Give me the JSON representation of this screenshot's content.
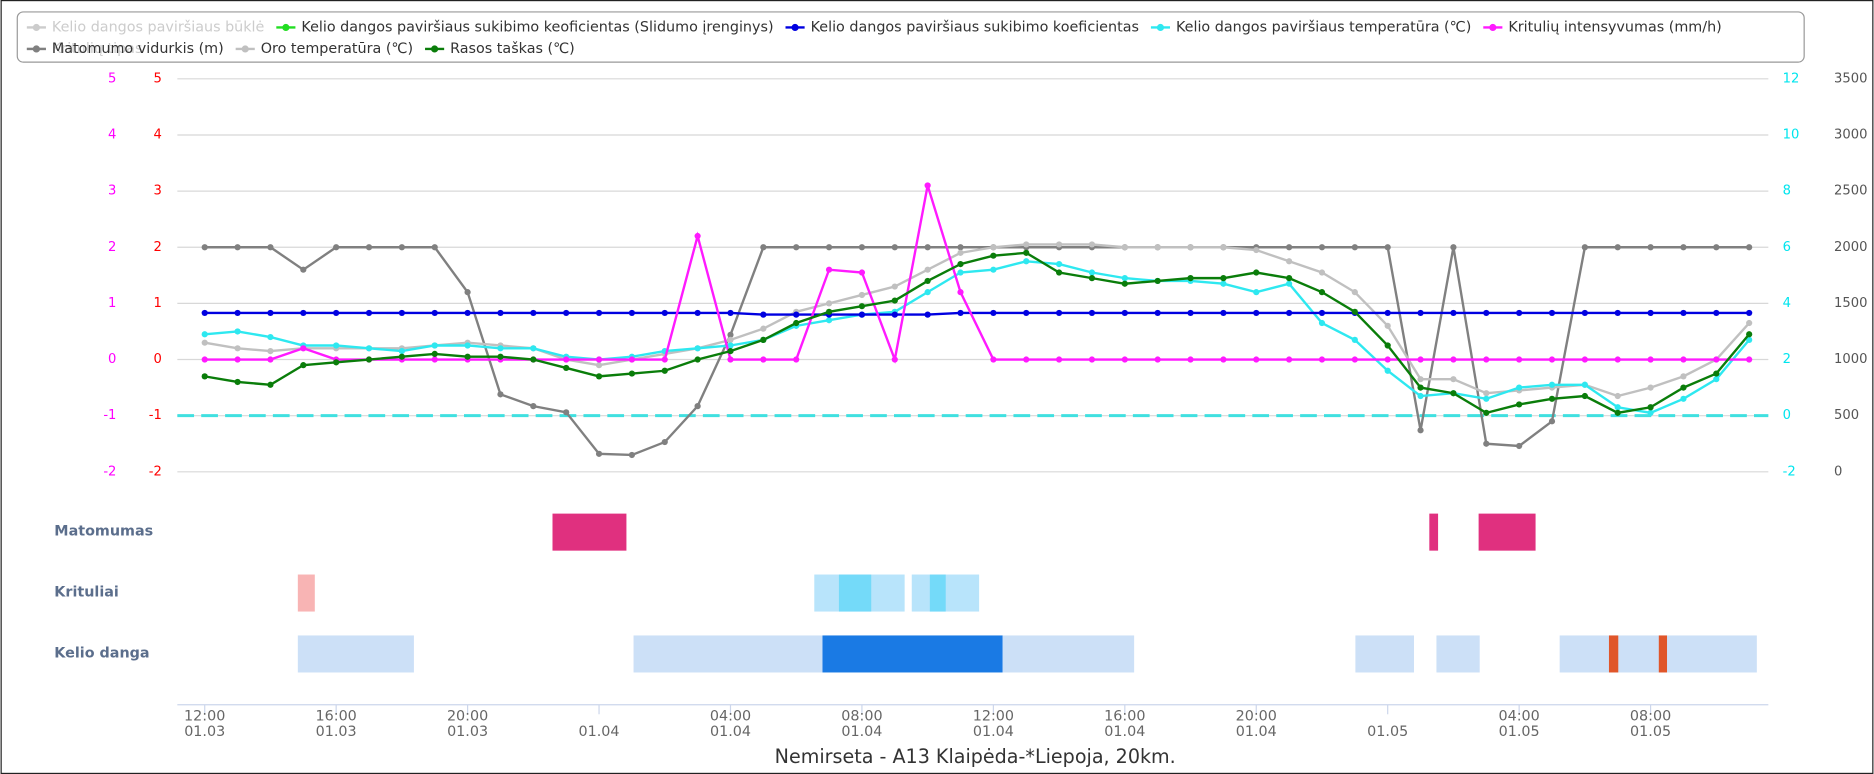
{
  "chart_data": {
    "type": "line",
    "title": "Nemirseta - A13 Klaipėda-*Liepoja, 20km.",
    "grid": true,
    "xlim": [
      "01.03 11:10",
      "01.05 11:35"
    ],
    "xticks": [
      {
        "value": "01.03 12:00",
        "lines": [
          "12:00",
          "01.03"
        ]
      },
      {
        "value": "01.03 16:00",
        "lines": [
          "16:00",
          "01.03"
        ]
      },
      {
        "value": "01.03 20:00",
        "lines": [
          "20:00",
          "01.03"
        ]
      },
      {
        "value": "01.04 00:00",
        "lines": [
          "01.04"
        ]
      },
      {
        "value": "01.04 04:00",
        "lines": [
          "04:00",
          "01.04"
        ]
      },
      {
        "value": "01.04 08:00",
        "lines": [
          "08:00",
          "01.04"
        ]
      },
      {
        "value": "01.04 12:00",
        "lines": [
          "12:00",
          "01.04"
        ]
      },
      {
        "value": "01.04 16:00",
        "lines": [
          "16:00",
          "01.04"
        ]
      },
      {
        "value": "01.04 20:00",
        "lines": [
          "20:00",
          "01.04"
        ]
      },
      {
        "value": "01.05 00:00",
        "lines": [
          "01.05"
        ]
      },
      {
        "value": "01.05 04:00",
        "lines": [
          "04:00",
          "01.05"
        ]
      },
      {
        "value": "01.05 08:00",
        "lines": [
          "08:00",
          "01.05"
        ]
      }
    ],
    "axes": [
      {
        "id": "precip",
        "side": "left",
        "color": "#ff00ff",
        "lim": [
          -2,
          5
        ],
        "ticks": [
          -2,
          -1,
          0,
          1,
          2,
          3,
          4,
          5
        ]
      },
      {
        "id": "friction",
        "side": "left",
        "color": "#ff0000",
        "lim": [
          -2,
          5
        ],
        "ticks": [
          -2,
          -1,
          0,
          1,
          2,
          3,
          4,
          5
        ]
      },
      {
        "id": "temp",
        "side": "right",
        "color": "#00e5ee",
        "lim": [
          -2,
          12
        ],
        "ticks": [
          -2,
          0,
          2,
          4,
          6,
          8,
          10,
          12
        ]
      },
      {
        "id": "visibility",
        "side": "right",
        "color": "#555555",
        "lim": [
          0,
          3500
        ],
        "ticks": [
          0,
          500,
          1000,
          1500,
          2000,
          2500,
          3000,
          3500
        ]
      }
    ],
    "plot_lines": [
      {
        "axis": "temp",
        "value": 0,
        "color": "#40e0e0"
      }
    ],
    "x": [
      "01.03 12:00",
      "01.03 13:00",
      "01.03 14:00",
      "01.03 15:00",
      "01.03 16:00",
      "01.03 17:00",
      "01.03 18:00",
      "01.03 19:00",
      "01.03 20:00",
      "01.03 21:00",
      "01.03 22:00",
      "01.03 23:00",
      "01.04 00:00",
      "01.04 01:00",
      "01.04 02:00",
      "01.04 03:00",
      "01.04 04:00",
      "01.04 05:00",
      "01.04 06:00",
      "01.04 07:00",
      "01.04 08:00",
      "01.04 09:00",
      "01.04 10:00",
      "01.04 11:00",
      "01.04 12:00",
      "01.04 13:00",
      "01.04 14:00",
      "01.04 15:00",
      "01.04 16:00",
      "01.04 17:00",
      "01.04 18:00",
      "01.04 19:00",
      "01.04 20:00",
      "01.04 21:00",
      "01.04 22:00",
      "01.04 23:00",
      "01.05 00:00",
      "01.05 01:00",
      "01.05 02:00",
      "01.05 03:00",
      "01.05 04:00",
      "01.05 05:00",
      "01.05 06:00",
      "01.05 07:00",
      "01.05 08:00",
      "01.05 09:00",
      "01.05 10:00",
      "01.05 11:00"
    ],
    "series": [
      {
        "name": "Matomumo vidurkis (m)",
        "color": "#808080",
        "axis": "visibility",
        "values": [
          2000,
          2000,
          2000,
          1800,
          2000,
          2000,
          2000,
          2000,
          1600,
          690,
          585,
          530,
          160,
          150,
          265,
          585,
          1220,
          2000,
          2000,
          2000,
          2000,
          2000,
          2000,
          2000,
          2000,
          2000,
          2000,
          2000,
          2000,
          2000,
          2000,
          2000,
          2000,
          2000,
          2000,
          2000,
          2000,
          370,
          2000,
          250,
          230,
          450,
          2000,
          2000,
          2000,
          2000,
          2000,
          2000
        ]
      },
      {
        "name": "Oro temperatūra (℃)",
        "color": "#c0c0c0",
        "axis": "temp",
        "values": [
          2.6,
          2.4,
          2.3,
          2.4,
          2.4,
          2.4,
          2.4,
          2.5,
          2.6,
          2.5,
          2.4,
          2.0,
          1.8,
          2.0,
          2.2,
          2.4,
          2.7,
          3.1,
          3.7,
          4.0,
          4.3,
          4.6,
          5.2,
          5.8,
          6.0,
          6.1,
          6.1,
          6.1,
          6.0,
          6.0,
          6.0,
          6.0,
          5.9,
          5.5,
          5.1,
          4.4,
          3.2,
          1.3,
          1.3,
          0.8,
          0.9,
          1.0,
          1.1,
          0.7,
          1.0,
          1.4,
          2.0,
          3.3
        ]
      },
      {
        "name": "Kelio dangos paviršiaus temperatūra (℃)",
        "color": "#2ee8f0",
        "axis": "temp",
        "values": [
          2.9,
          3.0,
          2.8,
          2.5,
          2.5,
          2.4,
          2.3,
          2.5,
          2.5,
          2.4,
          2.4,
          2.1,
          2.0,
          2.1,
          2.3,
          2.4,
          2.5,
          2.7,
          3.2,
          3.4,
          3.6,
          3.7,
          4.4,
          5.1,
          5.2,
          5.5,
          5.4,
          5.1,
          4.9,
          4.8,
          4.8,
          4.7,
          4.4,
          4.7,
          3.3,
          2.7,
          1.6,
          0.7,
          0.8,
          0.6,
          1.0,
          1.1,
          1.1,
          0.3,
          0.1,
          0.6,
          1.3,
          2.7
        ]
      },
      {
        "name": "Kelio dangos paviršiaus sukibimo koeficientas",
        "color": "#0000e0",
        "axis": "friction",
        "values": [
          0.83,
          0.83,
          0.83,
          0.83,
          0.83,
          0.83,
          0.83,
          0.83,
          0.83,
          0.83,
          0.83,
          0.83,
          0.83,
          0.83,
          0.83,
          0.83,
          0.83,
          0.8,
          0.8,
          0.8,
          0.8,
          0.8,
          0.8,
          0.83,
          0.83,
          0.83,
          0.83,
          0.83,
          0.83,
          0.83,
          0.83,
          0.83,
          0.83,
          0.83,
          0.83,
          0.83,
          0.83,
          0.83,
          0.83,
          0.83,
          0.83,
          0.83,
          0.83,
          0.83,
          0.83,
          0.83,
          0.83,
          0.83
        ]
      },
      {
        "name": "Kritulių intensyvumas (mm/h)",
        "color": "#ff1aff",
        "axis": "precip",
        "values": [
          0,
          0,
          0,
          0.2,
          0,
          0,
          0,
          0,
          0,
          0,
          0,
          0,
          0,
          0,
          0,
          2.2,
          0,
          0,
          0,
          1.6,
          1.55,
          0,
          3.1,
          1.2,
          0,
          0,
          0,
          0,
          0,
          0,
          0,
          0,
          0,
          0,
          0,
          0,
          0,
          0,
          0,
          0,
          0,
          0,
          0,
          0,
          0,
          0,
          0,
          0
        ]
      },
      {
        "name": "Rasos taškas (℃)",
        "color": "#0a7d0a",
        "axis": "temp",
        "values": [
          1.4,
          1.2,
          1.1,
          1.8,
          1.9,
          2.0,
          2.1,
          2.2,
          2.1,
          2.1,
          2.0,
          1.7,
          1.4,
          1.5,
          1.6,
          2.0,
          2.3,
          2.7,
          3.3,
          3.7,
          3.9,
          4.1,
          4.8,
          5.4,
          5.7,
          5.8,
          5.1,
          4.9,
          4.7,
          4.8,
          4.9,
          4.9,
          5.1,
          4.9,
          4.4,
          3.7,
          2.5,
          1.0,
          0.8,
          0.1,
          0.4,
          0.6,
          0.7,
          0.1,
          0.3,
          1.0,
          1.5,
          2.9
        ]
      }
    ],
    "legend": [
      {
        "name": "Kelio dangos paviršiaus būklė",
        "color": "#cccccc",
        "hidden": true
      },
      {
        "name": "Kelio dangos paviršiaus sukibimo keoficientas (Slidumo įrenginys)",
        "color": "#22dd22",
        "hidden": false
      },
      {
        "series": 3
      },
      {
        "series": 2
      },
      {
        "series": 4
      },
      {
        "name": "Kritulių tipas",
        "color": "#cccccc",
        "hidden": true
      },
      {
        "series": 0
      },
      {
        "series": 1
      },
      {
        "series": 5
      }
    ],
    "timeline": [
      {
        "name": "Matomumas",
        "segments": [
          {
            "start": "01.03 22:35",
            "end": "01.04 00:50",
            "color": "#e0307f"
          },
          {
            "start": "01.05 01:16",
            "end": "01.05 01:32",
            "color": "#e0307f"
          },
          {
            "start": "01.05 02:46",
            "end": "01.05 04:30",
            "color": "#e0307f"
          }
        ]
      },
      {
        "name": "Krituliai",
        "segments": [
          {
            "start": "01.03 14:50",
            "end": "01.03 15:21",
            "color": "#f8b4b4"
          },
          {
            "start": "01.04 06:33",
            "end": "01.04 09:18",
            "color": "#b8e4fb"
          },
          {
            "start": "01.04 07:18",
            "end": "01.04 08:17",
            "color": "#74daf9"
          },
          {
            "start": "01.04 09:31",
            "end": "01.04 11:34",
            "color": "#b8e4fb"
          },
          {
            "start": "01.04 10:04",
            "end": "01.04 10:33",
            "color": "#74daf9"
          }
        ]
      },
      {
        "name": "Kelio danga",
        "segments": [
          {
            "start": "01.03 14:50",
            "end": "01.03 18:22",
            "color": "#cce0f7"
          },
          {
            "start": "01.04 01:03",
            "end": "01.04 06:48",
            "color": "#cce0f7"
          },
          {
            "start": "01.04 06:48",
            "end": "01.04 12:17",
            "color": "#1a7ae4"
          },
          {
            "start": "01.04 12:17",
            "end": "01.04 16:17",
            "color": "#cce0f7"
          },
          {
            "start": "01.04 23:01",
            "end": "01.05 00:48",
            "color": "#cce0f7"
          },
          {
            "start": "01.05 01:29",
            "end": "01.05 02:48",
            "color": "#cce0f7"
          },
          {
            "start": "01.05 05:14",
            "end": "01.05 11:14",
            "color": "#cce0f7"
          },
          {
            "start": "01.05 06:44",
            "end": "01.05 07:01",
            "color": "#e0562a"
          },
          {
            "start": "01.05 08:15",
            "end": "01.05 08:30",
            "color": "#e0562a"
          }
        ]
      }
    ]
  }
}
